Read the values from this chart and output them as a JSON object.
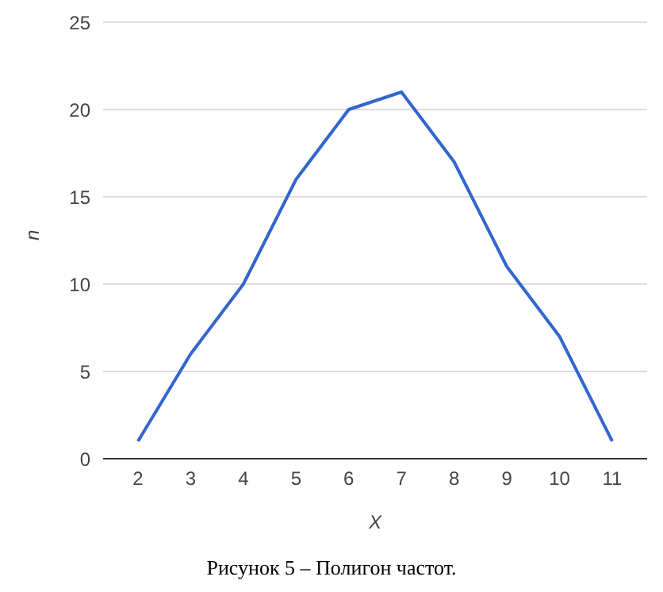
{
  "chart_data": {
    "type": "line",
    "categories": [
      "2",
      "3",
      "4",
      "5",
      "6",
      "7",
      "8",
      "9",
      "10",
      "11"
    ],
    "series": [
      {
        "color": "#3366cc",
        "values": [
          1,
          6,
          10,
          16,
          20,
          21,
          17,
          11,
          7,
          1
        ]
      }
    ],
    "xlabel": "X",
    "ylabel": "n",
    "ylim": [
      0,
      25
    ],
    "yticks": [
      0,
      5,
      10,
      15,
      20,
      25
    ],
    "grid": "y",
    "legend": false,
    "marker": "none",
    "line_style": "solid",
    "annotations": [
      "Рисунок 5 – Полигон частот."
    ]
  }
}
